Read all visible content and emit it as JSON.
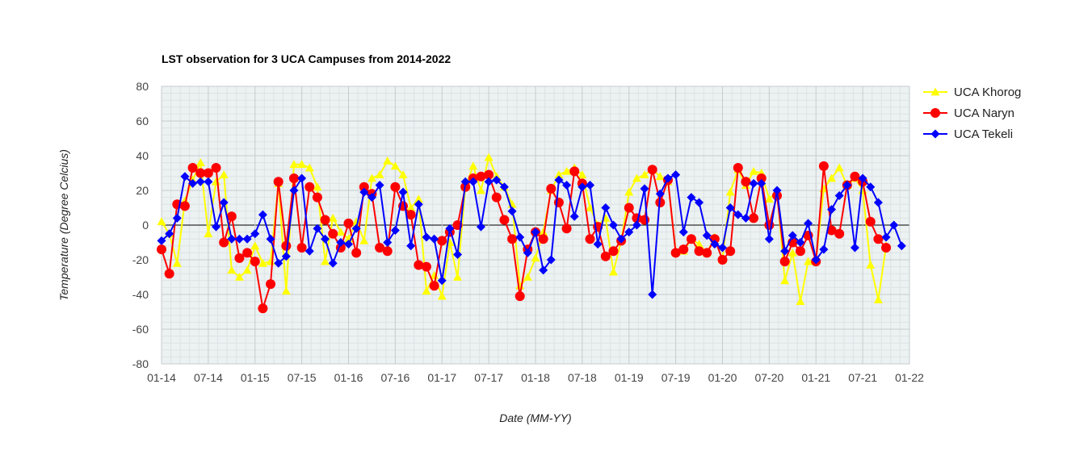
{
  "chart_data": {
    "type": "line",
    "title": "LST observation for 3 UCA Campuses from 2014-2022",
    "xlabel": "Date (MM-YY)",
    "ylabel": "Temperature (Degree Celcius)",
    "x_ticks": [
      "01-14",
      "07-14",
      "01-15",
      "07-15",
      "01-16",
      "07-16",
      "01-17",
      "07-17",
      "01-18",
      "07-18",
      "01-19",
      "07-19",
      "01-20",
      "07-20",
      "01-21",
      "07-21",
      "01-22"
    ],
    "y_ticks": [
      80,
      60,
      40,
      20,
      0,
      -20,
      -40,
      -60,
      -80
    ],
    "ylim": [
      -80,
      80
    ],
    "xlim_months": [
      0,
      96
    ],
    "grid": true,
    "legend_position": "right",
    "series": [
      {
        "name": "UCA Khorog",
        "color": "#ffff00",
        "marker": "triangle",
        "points": [
          [
            0,
            2
          ],
          [
            1,
            -5
          ],
          [
            2,
            -22
          ],
          [
            3,
            14
          ],
          [
            4,
            26
          ],
          [
            5,
            36
          ],
          [
            6,
            -5
          ],
          [
            7,
            25
          ],
          [
            8,
            29
          ],
          [
            9,
            -26
          ],
          [
            10,
            -30
          ],
          [
            11,
            -26
          ],
          [
            12,
            -12
          ],
          [
            13,
            -22
          ],
          [
            14,
            -21
          ],
          [
            15,
            24
          ],
          [
            16,
            -38
          ],
          [
            17,
            35
          ],
          [
            18,
            35
          ],
          [
            19,
            33
          ],
          [
            20,
            22
          ],
          [
            21,
            -21
          ],
          [
            22,
            4
          ],
          [
            23,
            -4
          ],
          [
            24,
            -8
          ],
          [
            25,
            2
          ],
          [
            26,
            -9
          ],
          [
            27,
            27
          ],
          [
            28,
            29
          ],
          [
            29,
            37
          ],
          [
            30,
            34
          ],
          [
            31,
            29
          ],
          [
            32,
            10
          ],
          [
            33,
            15
          ],
          [
            34,
            -38
          ],
          [
            35,
            -29
          ],
          [
            36,
            -41
          ],
          [
            37,
            -10
          ],
          [
            38,
            -30
          ],
          [
            39,
            22
          ],
          [
            40,
            34
          ],
          [
            41,
            20
          ],
          [
            42,
            39
          ],
          [
            43,
            28
          ],
          [
            44,
            22
          ],
          [
            45,
            12
          ],
          [
            46,
            -35
          ],
          [
            47,
            -30
          ],
          [
            48,
            -19
          ],
          [
            49,
            -4
          ],
          [
            50,
            20
          ],
          [
            51,
            29
          ],
          [
            52,
            31
          ],
          [
            53,
            33
          ],
          [
            54,
            29
          ],
          [
            55,
            10
          ],
          [
            56,
            0
          ],
          [
            57,
            4
          ],
          [
            58,
            -27
          ],
          [
            59,
            -9
          ],
          [
            60,
            19
          ],
          [
            61,
            27
          ],
          [
            62,
            29
          ],
          [
            63,
            32
          ],
          [
            64,
            28
          ],
          [
            65,
            25
          ],
          [
            66,
            -15
          ],
          [
            67,
            -15
          ],
          [
            68,
            -8
          ],
          [
            69,
            -11
          ],
          [
            70,
            -16
          ],
          [
            71,
            -7
          ],
          [
            72,
            -20
          ],
          [
            73,
            19
          ],
          [
            74,
            32
          ],
          [
            75,
            23
          ],
          [
            76,
            31
          ],
          [
            77,
            30
          ],
          [
            78,
            15
          ],
          [
            79,
            20
          ],
          [
            80,
            -32
          ],
          [
            81,
            -16
          ],
          [
            82,
            -44
          ],
          [
            83,
            -21
          ],
          [
            84,
            -20
          ],
          [
            85,
            21
          ],
          [
            86,
            27
          ],
          [
            87,
            33
          ],
          [
            88,
            23
          ],
          [
            89,
            27
          ],
          [
            90,
            20
          ],
          [
            91,
            -23
          ],
          [
            92,
            -43
          ],
          [
            93,
            -12
          ]
        ]
      },
      {
        "name": "UCA Naryn",
        "color": "#ff0000",
        "marker": "circle",
        "points": [
          [
            0,
            -14
          ],
          [
            1,
            -28
          ],
          [
            2,
            12
          ],
          [
            3,
            11
          ],
          [
            4,
            33
          ],
          [
            5,
            30
          ],
          [
            6,
            30
          ],
          [
            7,
            33
          ],
          [
            8,
            -10
          ],
          [
            9,
            5
          ],
          [
            10,
            -19
          ],
          [
            11,
            -16
          ],
          [
            12,
            -21
          ],
          [
            13,
            -48
          ],
          [
            14,
            -34
          ],
          [
            15,
            25
          ],
          [
            16,
            -12
          ],
          [
            17,
            27
          ],
          [
            18,
            -13
          ],
          [
            19,
            22
          ],
          [
            20,
            16
          ],
          [
            21,
            3
          ],
          [
            22,
            -5
          ],
          [
            23,
            -13
          ],
          [
            24,
            1
          ],
          [
            25,
            -16
          ],
          [
            26,
            22
          ],
          [
            27,
            18
          ],
          [
            28,
            -13
          ],
          [
            29,
            -15
          ],
          [
            30,
            22
          ],
          [
            31,
            11
          ],
          [
            32,
            6
          ],
          [
            33,
            -23
          ],
          [
            34,
            -24
          ],
          [
            35,
            -35
          ],
          [
            36,
            -9
          ],
          [
            37,
            -4
          ],
          [
            38,
            0
          ],
          [
            39,
            22
          ],
          [
            40,
            27
          ],
          [
            41,
            28
          ],
          [
            42,
            29
          ],
          [
            43,
            16
          ],
          [
            44,
            3
          ],
          [
            45,
            -8
          ],
          [
            46,
            -41
          ],
          [
            47,
            -14
          ],
          [
            48,
            -4
          ],
          [
            49,
            -8
          ],
          [
            50,
            21
          ],
          [
            51,
            13
          ],
          [
            52,
            -2
          ],
          [
            53,
            31
          ],
          [
            54,
            24
          ],
          [
            55,
            -8
          ],
          [
            56,
            -1
          ],
          [
            57,
            -18
          ],
          [
            58,
            -15
          ],
          [
            59,
            -9
          ],
          [
            60,
            10
          ],
          [
            61,
            4
          ],
          [
            62,
            3
          ],
          [
            63,
            32
          ],
          [
            64,
            13
          ],
          [
            65,
            26
          ],
          [
            66,
            -16
          ],
          [
            67,
            -14
          ],
          [
            68,
            -8
          ],
          [
            69,
            -15
          ],
          [
            70,
            -16
          ],
          [
            71,
            -8
          ],
          [
            72,
            -20
          ],
          [
            73,
            -15
          ],
          [
            74,
            33
          ],
          [
            75,
            25
          ],
          [
            76,
            4
          ],
          [
            77,
            27
          ],
          [
            78,
            0
          ],
          [
            79,
            17
          ],
          [
            80,
            -21
          ],
          [
            81,
            -10
          ],
          [
            82,
            -15
          ],
          [
            83,
            -6
          ],
          [
            84,
            -21
          ],
          [
            85,
            34
          ],
          [
            86,
            -3
          ],
          [
            87,
            -5
          ],
          [
            88,
            23
          ],
          [
            89,
            28
          ],
          [
            90,
            25
          ],
          [
            91,
            2
          ],
          [
            92,
            -8
          ],
          [
            93,
            -13
          ]
        ]
      },
      {
        "name": "UCA Tekeli",
        "color": "#0000ff",
        "marker": "diamond",
        "points": [
          [
            0,
            -9
          ],
          [
            1,
            -5
          ],
          [
            2,
            4
          ],
          [
            3,
            28
          ],
          [
            4,
            24
          ],
          [
            5,
            25
          ],
          [
            6,
            25
          ],
          [
            7,
            -1
          ],
          [
            8,
            13
          ],
          [
            9,
            -8
          ],
          [
            10,
            -8
          ],
          [
            11,
            -8
          ],
          [
            12,
            -5
          ],
          [
            13,
            6
          ],
          [
            14,
            -8
          ],
          [
            15,
            -22
          ],
          [
            16,
            -18
          ],
          [
            17,
            20
          ],
          [
            18,
            27
          ],
          [
            19,
            -15
          ],
          [
            20,
            -2
          ],
          [
            21,
            -8
          ],
          [
            22,
            -22
          ],
          [
            23,
            -10
          ],
          [
            24,
            -11
          ],
          [
            25,
            -2
          ],
          [
            26,
            19
          ],
          [
            27,
            16
          ],
          [
            28,
            23
          ],
          [
            29,
            -10
          ],
          [
            30,
            -3
          ],
          [
            31,
            19
          ],
          [
            32,
            -12
          ],
          [
            33,
            12
          ],
          [
            34,
            -7
          ],
          [
            35,
            -8
          ],
          [
            36,
            -32
          ],
          [
            37,
            -2
          ],
          [
            38,
            -17
          ],
          [
            39,
            25
          ],
          [
            40,
            25
          ],
          [
            41,
            -1
          ],
          [
            42,
            25
          ],
          [
            43,
            26
          ],
          [
            44,
            22
          ],
          [
            45,
            8
          ],
          [
            46,
            -7
          ],
          [
            47,
            -16
          ],
          [
            48,
            -4
          ],
          [
            49,
            -26
          ],
          [
            50,
            -20
          ],
          [
            51,
            26
          ],
          [
            52,
            23
          ],
          [
            53,
            5
          ],
          [
            54,
            22
          ],
          [
            55,
            23
          ],
          [
            56,
            -11
          ],
          [
            57,
            10
          ],
          [
            58,
            0
          ],
          [
            59,
            -8
          ],
          [
            60,
            -4
          ],
          [
            61,
            0
          ],
          [
            62,
            21
          ],
          [
            63,
            -40
          ],
          [
            64,
            18
          ],
          [
            65,
            27
          ],
          [
            66,
            29
          ],
          [
            67,
            -4
          ],
          [
            68,
            16
          ],
          [
            69,
            13
          ],
          [
            70,
            -6
          ],
          [
            71,
            -11
          ],
          [
            72,
            -13
          ],
          [
            73,
            10
          ],
          [
            74,
            6
          ],
          [
            75,
            4
          ],
          [
            76,
            24
          ],
          [
            77,
            24
          ],
          [
            78,
            -8
          ],
          [
            79,
            20
          ],
          [
            80,
            -15
          ],
          [
            81,
            -6
          ],
          [
            82,
            -10
          ],
          [
            83,
            1
          ],
          [
            84,
            -20
          ],
          [
            85,
            -14
          ],
          [
            86,
            9
          ],
          [
            87,
            17
          ],
          [
            88,
            23
          ],
          [
            89,
            -13
          ],
          [
            90,
            27
          ],
          [
            91,
            22
          ],
          [
            92,
            13
          ],
          [
            93,
            -7
          ],
          [
            94,
            0
          ],
          [
            95,
            -12
          ]
        ]
      }
    ]
  }
}
